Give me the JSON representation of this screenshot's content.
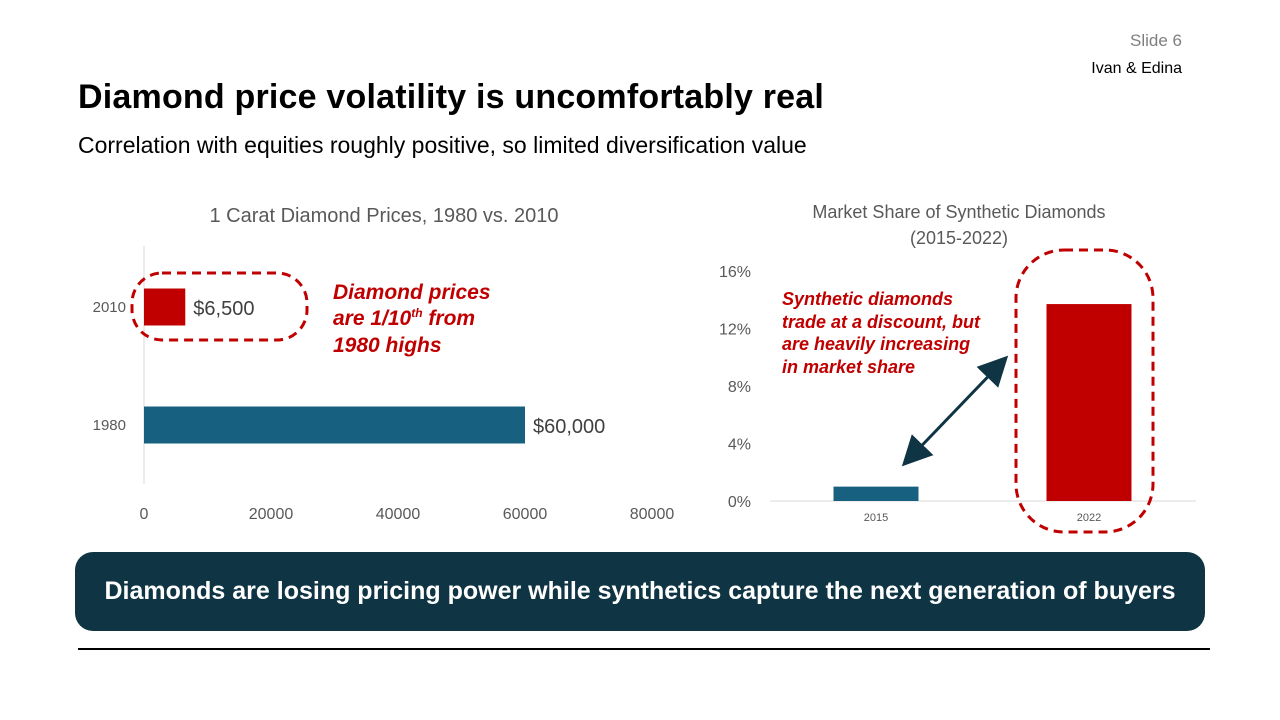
{
  "header": {
    "slide_label": "Slide 6",
    "authors": "Ivan & Edina",
    "title": "Diamond price volatility is uncomfortably real",
    "subtitle": "Correlation with equities roughly positive, so limited diversification value"
  },
  "callouts": {
    "left_line1": "Diamond prices",
    "left_line2_pre": "are 1/10",
    "left_line2_sup": "th",
    "left_line2_post": " from",
    "left_line3": "1980 highs",
    "right_line1": "Synthetic diamonds",
    "right_line2": "trade at a discount, but",
    "right_line3": "are heavily increasing",
    "right_line4": "in market share"
  },
  "banner": {
    "text": "Diamonds are losing pricing power while synthetics capture the next generation of buyers"
  },
  "colors": {
    "red": "#c00000",
    "blue": "#17607f",
    "dark_teal": "#0f3444",
    "axis_text": "#595959"
  },
  "chart_data": [
    {
      "type": "bar",
      "orientation": "horizontal",
      "title": "1 Carat Diamond Prices, 1980 vs. 2010",
      "categories": [
        "2010",
        "1980"
      ],
      "values": [
        6500,
        60000
      ],
      "data_labels": [
        "$6,500",
        "$60,000"
      ],
      "bar_colors": [
        "#c00000",
        "#17607f"
      ],
      "xlim": [
        0,
        80000
      ],
      "xticks": [
        "0",
        "20000",
        "40000",
        "60000",
        "80000"
      ],
      "grid": false
    },
    {
      "type": "bar",
      "orientation": "vertical",
      "title_line1": "Market Share of Synthetic Diamonds",
      "title_line2": "(2015-2022)",
      "categories": [
        "2015",
        "2022"
      ],
      "values": [
        1.0,
        13.7
      ],
      "bar_colors": [
        "#17607f",
        "#c00000"
      ],
      "ylim": [
        0,
        16
      ],
      "yticks": [
        "0%",
        "4%",
        "8%",
        "12%",
        "16%"
      ],
      "grid": false
    }
  ]
}
